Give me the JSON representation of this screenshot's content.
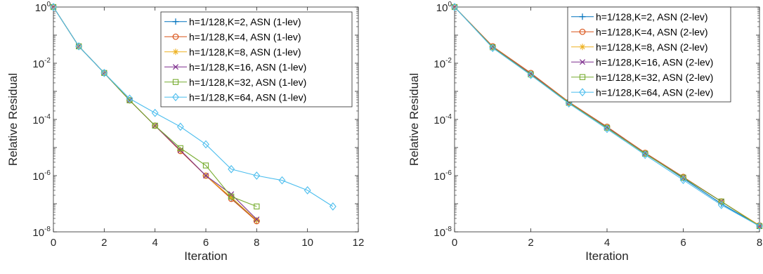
{
  "chart_data": [
    {
      "type": "line",
      "xlabel": "Iteration",
      "ylabel": "Relative Residual",
      "yscale": "log",
      "xlim": [
        0,
        12
      ],
      "ylim": [
        1e-08,
        1
      ],
      "xticks": [
        0,
        2,
        4,
        6,
        8,
        10,
        12
      ],
      "yticks": [
        {
          "base": "10",
          "exp": "0",
          "value": 1
        },
        {
          "base": "10",
          "exp": "-2",
          "value": 0.01
        },
        {
          "base": "10",
          "exp": "-4",
          "value": 0.0001
        },
        {
          "base": "10",
          "exp": "-6",
          "value": 1e-06
        },
        {
          "base": "10",
          "exp": "-8",
          "value": 1e-08
        }
      ],
      "grid": false,
      "legend_position": "top-right",
      "series": [
        {
          "name": "h=1/128,K=2, ASN (1-lev)",
          "color": "#0072BD",
          "marker": "plus",
          "x": [
            0,
            1,
            2,
            3,
            4,
            5,
            6,
            7,
            8
          ],
          "y": [
            1,
            0.04,
            0.0045,
            0.00048,
            6e-05,
            8e-06,
            1e-06,
            1.6e-07,
            2.5e-08
          ]
        },
        {
          "name": "h=1/128,K=4, ASN (1-lev)",
          "color": "#D95319",
          "marker": "circle",
          "x": [
            0,
            1,
            2,
            3,
            4,
            5,
            6,
            7,
            8
          ],
          "y": [
            1,
            0.04,
            0.0045,
            0.00048,
            6e-05,
            7.5e-06,
            1e-06,
            1.5e-07,
            2.4e-08
          ]
        },
        {
          "name": "h=1/128,K=8, ASN (1-lev)",
          "color": "#EDB120",
          "marker": "asterisk",
          "x": [
            0,
            1,
            2,
            3,
            4,
            5,
            6,
            7,
            8
          ],
          "y": [
            1,
            0.04,
            0.0045,
            0.00048,
            6e-05,
            8e-06,
            1e-06,
            1.7e-07,
            2.6e-08
          ]
        },
        {
          "name": "h=1/128,K=16, ASN (1-lev)",
          "color": "#7E2F8E",
          "marker": "x",
          "x": [
            0,
            1,
            2,
            3,
            4,
            5,
            6,
            7,
            8
          ],
          "y": [
            1,
            0.04,
            0.0045,
            0.00048,
            6e-05,
            8e-06,
            1e-06,
            2.2e-07,
            2.8e-08
          ]
        },
        {
          "name": "h=1/128,K=32, ASN (1-lev)",
          "color": "#77AC30",
          "marker": "square",
          "x": [
            0,
            1,
            2,
            3,
            4,
            5,
            6,
            7,
            8
          ],
          "y": [
            1,
            0.04,
            0.0045,
            0.00048,
            6e-05,
            9.5e-06,
            2.3e-06,
            1.8e-07,
            8e-08
          ]
        },
        {
          "name": "h=1/128,K=64, ASN (1-lev)",
          "color": "#4DBEEE",
          "marker": "diamond",
          "x": [
            0,
            1,
            2,
            3,
            4,
            5,
            6,
            7,
            8,
            9,
            10,
            11
          ],
          "y": [
            1,
            0.04,
            0.0045,
            0.00055,
            0.00017,
            5.5e-05,
            1.3e-05,
            1.7e-06,
            1e-06,
            6.8e-07,
            3e-07,
            8e-08
          ]
        }
      ]
    },
    {
      "type": "line",
      "xlabel": "Iteration",
      "ylabel": "Relative Residual",
      "yscale": "log",
      "xlim": [
        0,
        8
      ],
      "ylim": [
        1e-08,
        1
      ],
      "xticks": [
        0,
        2,
        4,
        6,
        8
      ],
      "yticks": [
        {
          "base": "10",
          "exp": "0",
          "value": 1
        },
        {
          "base": "10",
          "exp": "-2",
          "value": 0.01
        },
        {
          "base": "10",
          "exp": "-4",
          "value": 0.0001
        },
        {
          "base": "10",
          "exp": "-6",
          "value": 1e-06
        },
        {
          "base": "10",
          "exp": "-8",
          "value": 1e-08
        }
      ],
      "grid": false,
      "legend_position": "top-right",
      "series": [
        {
          "name": "h=1/128,K=2, ASN (2-lev)",
          "color": "#0072BD",
          "marker": "plus",
          "x": [
            0,
            1,
            2,
            3,
            4,
            5,
            6,
            7,
            8
          ],
          "y": [
            1,
            0.038,
            0.0042,
            0.0004,
            5.3e-05,
            6.2e-06,
            8e-07,
            1e-07,
            1.6e-08
          ]
        },
        {
          "name": "h=1/128,K=4, ASN (2-lev)",
          "color": "#D95319",
          "marker": "circle",
          "x": [
            0,
            1,
            2,
            3,
            4,
            5,
            6,
            7,
            8
          ],
          "y": [
            1,
            0.04,
            0.0045,
            0.00042,
            5.5e-05,
            6.5e-06,
            9e-07,
            1.2e-07,
            1.7e-08
          ]
        },
        {
          "name": "h=1/128,K=8, ASN (2-lev)",
          "color": "#EDB120",
          "marker": "asterisk",
          "x": [
            0,
            1,
            2,
            3,
            4,
            5,
            6,
            7,
            8
          ],
          "y": [
            1,
            0.039,
            0.0043,
            0.00041,
            5.3e-05,
            6.3e-06,
            8.7e-07,
            1.2e-07,
            1.7e-08
          ]
        },
        {
          "name": "h=1/128,K=16, ASN (2-lev)",
          "color": "#7E2F8E",
          "marker": "x",
          "x": [
            0,
            1,
            2,
            3,
            4,
            5,
            6,
            7,
            8
          ],
          "y": [
            1,
            0.038,
            0.0042,
            0.0004,
            5.2e-05,
            6.2e-06,
            8.6e-07,
            1.2e-07,
            1.6e-08
          ]
        },
        {
          "name": "h=1/128,K=32, ASN (2-lev)",
          "color": "#77AC30",
          "marker": "square",
          "x": [
            0,
            1,
            2,
            3,
            4,
            5,
            6,
            7,
            8
          ],
          "y": [
            1,
            0.037,
            0.004,
            0.00039,
            5e-05,
            6e-06,
            8.5e-07,
            1.2e-07,
            1.6e-08
          ]
        },
        {
          "name": "h=1/128,K=64, ASN (2-lev)",
          "color": "#4DBEEE",
          "marker": "diamond",
          "x": [
            0,
            1,
            2,
            3,
            4,
            5,
            6,
            7,
            8
          ],
          "y": [
            1,
            0.035,
            0.0038,
            0.00037,
            4.6e-05,
            5.5e-06,
            7e-07,
            9e-08,
            1.6e-08
          ]
        }
      ]
    }
  ]
}
